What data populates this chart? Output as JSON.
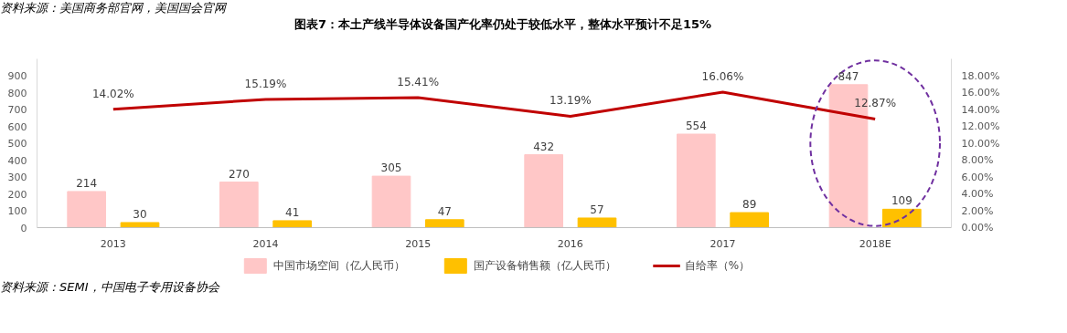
{
  "chart_data": {
    "type": "bar",
    "title": "图表7：本土产线半导体设备国产化率仍处于较低水平，整体水平预计不足15%",
    "categories": [
      "2013",
      "2014",
      "2015",
      "2016",
      "2017",
      "2018E"
    ],
    "series": [
      {
        "name": "中国市场空间（亿人民币）",
        "color": "#ffc7c7",
        "values": [
          214,
          270,
          305,
          432,
          554,
          847
        ],
        "value_labels": [
          "214",
          "270",
          "305",
          "432",
          "554",
          "847"
        ]
      },
      {
        "name": "国产设备销售额（亿人民币）",
        "color": "#ffc000",
        "values": [
          30,
          41,
          47,
          57,
          89,
          109
        ],
        "value_labels": [
          "30",
          "41",
          "47",
          "57",
          "89",
          "109"
        ]
      },
      {
        "name": "自给率（%）",
        "type": "line",
        "axis": "y2",
        "color": "#c00000",
        "values": [
          14.02,
          15.19,
          15.41,
          13.19,
          16.06,
          12.87
        ],
        "value_labels": [
          "14.02%",
          "15.19%",
          "15.41%",
          "13.19%",
          "16.06%",
          "12.87%"
        ]
      }
    ],
    "ylim": [
      0,
      1000
    ],
    "yticks": [
      0,
      100,
      200,
      300,
      400,
      500,
      600,
      700,
      800,
      900
    ],
    "y2lim": [
      0,
      20
    ],
    "y2ticks": [
      {
        "value": 0,
        "label": "0.00%"
      },
      {
        "value": 2,
        "label": "2.00%"
      },
      {
        "value": 4,
        "label": "4.00%"
      },
      {
        "value": 6,
        "label": "6.00%"
      },
      {
        "value": 8,
        "label": "8.00%"
      },
      {
        "value": 10,
        "label": "10.00%"
      },
      {
        "value": 12,
        "label": "12.00%"
      },
      {
        "value": 14,
        "label": "14.00%"
      },
      {
        "value": 16,
        "label": "16.00%"
      },
      {
        "value": 18,
        "label": "18.00%"
      }
    ],
    "grid": false,
    "legend": "bottom",
    "marker": "none",
    "line_style": "solid",
    "annotations": [
      "资料来源：美国商务部官网，美国国会官网",
      "资料来源：SEMI，中国电子专用设备协会"
    ]
  }
}
